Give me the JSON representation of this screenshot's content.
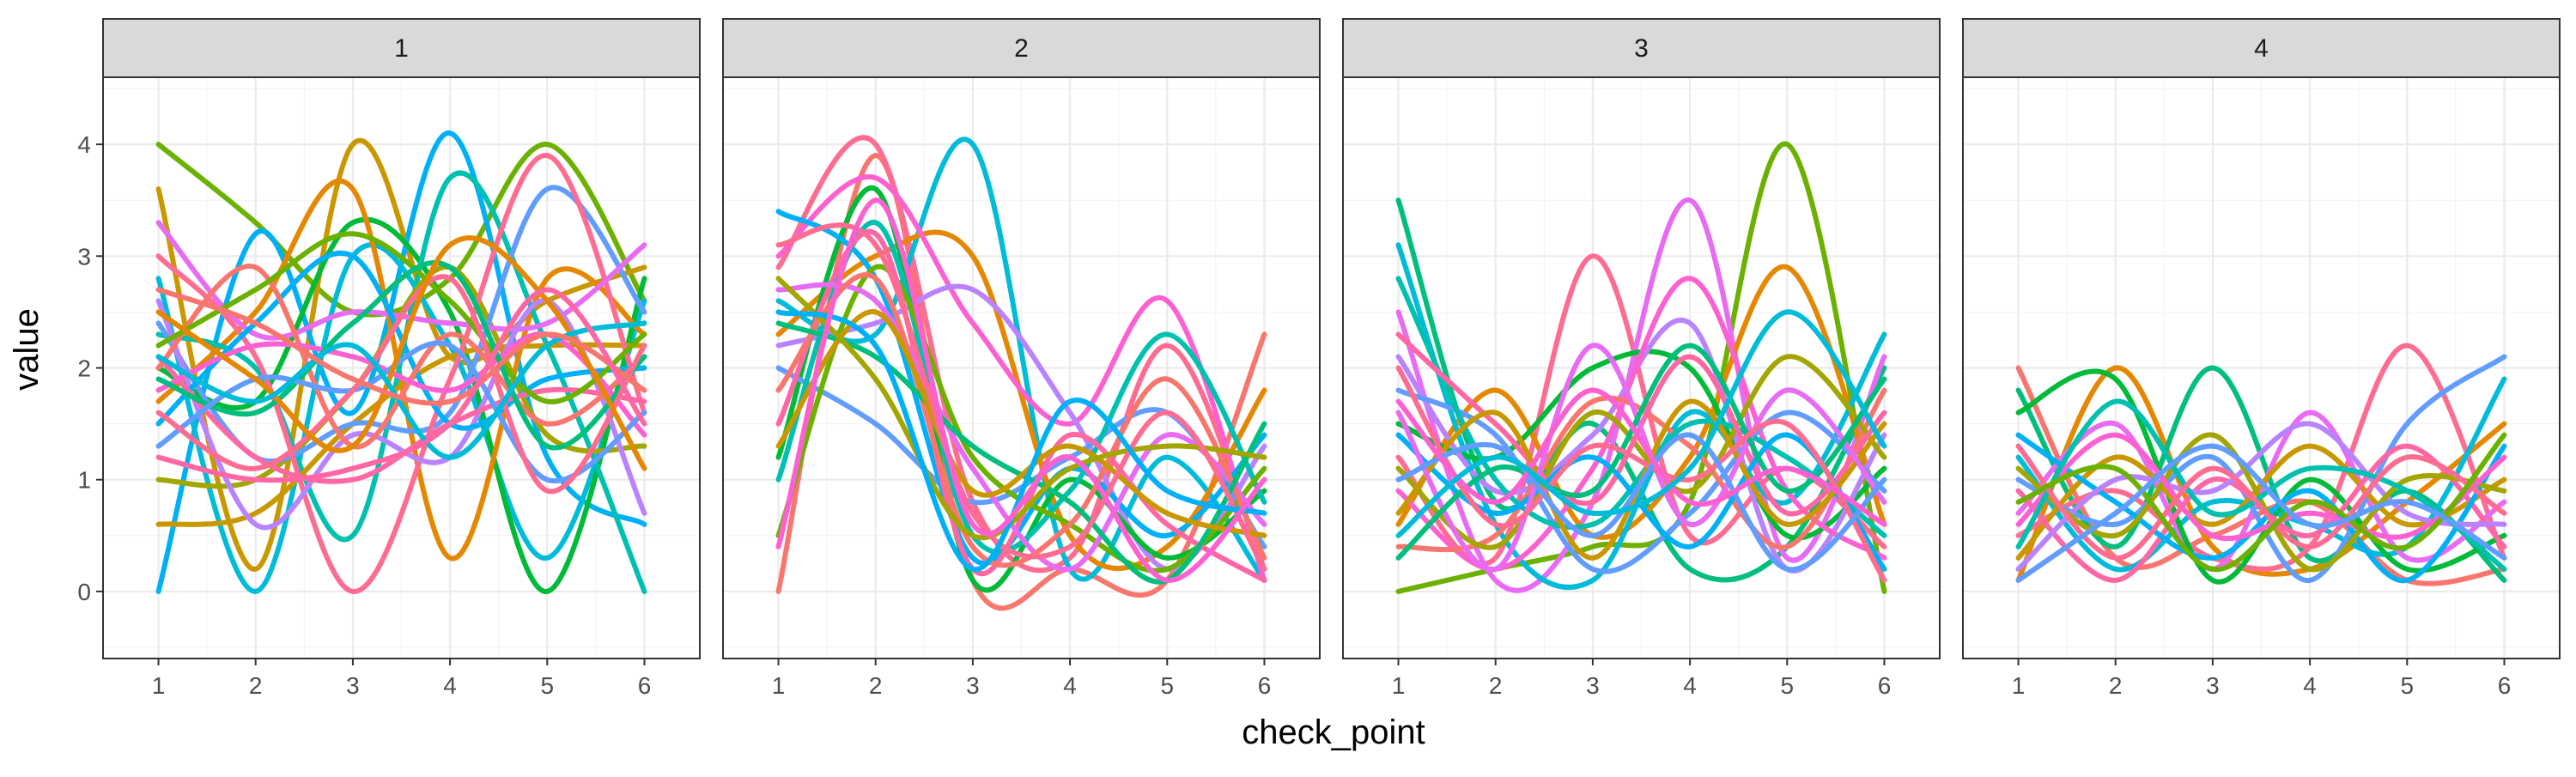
{
  "chart_data": {
    "type": "line",
    "xlabel": "check_point",
    "ylabel": "value",
    "x": [
      1,
      2,
      3,
      4,
      5,
      6
    ],
    "xlim": [
      0.43,
      6.57
    ],
    "ylim": [
      -0.6,
      4.6
    ],
    "x_ticks": [
      "1",
      "2",
      "3",
      "4",
      "5",
      "6"
    ],
    "y_ticks": [
      "0",
      "1",
      "2",
      "3",
      "4"
    ],
    "grid": true,
    "legend": "none",
    "smoothing": "spline",
    "palette": [
      "#F8766D",
      "#E58700",
      "#C99800",
      "#A3A500",
      "#6BB100",
      "#00BA38",
      "#00BF7D",
      "#00C0AF",
      "#00BCD8",
      "#00B0F6",
      "#619CFF",
      "#B983FF",
      "#E76BF3",
      "#FD61D1",
      "#FF67A4",
      "#FF6C91"
    ],
    "panels": [
      {
        "label": "1",
        "series": [
          {
            "color": "#6BB100",
            "values": [
              4,
              3.3,
              2.5,
              2.8,
              4,
              2.6
            ]
          },
          {
            "color": "#C99800",
            "values": [
              3.6,
              0.2,
              4,
              2.1,
              2.6,
              2.9
            ]
          },
          {
            "color": "#00B0F6",
            "values": [
              0,
              3.2,
              1.6,
              4.1,
              1.2,
              0.6
            ]
          },
          {
            "color": "#00BCD8",
            "values": [
              2.8,
              0,
              3,
              2.2,
              0.3,
              2.6
            ]
          },
          {
            "color": "#00BA38",
            "values": [
              2,
              1.7,
              3.3,
              2.5,
              0,
              2.8
            ]
          },
          {
            "color": "#E58700",
            "values": [
              1.7,
              2.5,
              3.6,
              0.3,
              2.8,
              2.3
            ]
          },
          {
            "color": "#00C0AF",
            "values": [
              2.3,
              2,
              0.5,
              3.7,
              2.2,
              0
            ]
          },
          {
            "color": "#A3A500",
            "values": [
              1,
              1,
              1.8,
              2.9,
              1.4,
              1.3
            ]
          },
          {
            "color": "#C99800",
            "values": [
              0.6,
              0.7,
              1.5,
              2.1,
              2.2,
              2.2
            ]
          },
          {
            "color": "#619CFF",
            "values": [
              2.4,
              1.2,
              1.5,
              1.6,
              3.6,
              2.5
            ]
          },
          {
            "color": "#FF6C91",
            "values": [
              3,
              2.1,
              0,
              1.9,
              3.9,
              1.6
            ]
          },
          {
            "color": "#E76BF3",
            "values": [
              3.3,
              2.3,
              2.5,
              2.4,
              2.4,
              3.1
            ]
          },
          {
            "color": "#B983FF",
            "values": [
              2.6,
              0.6,
              1.4,
              1.2,
              2.6,
              0.7
            ]
          },
          {
            "color": "#00B0F6",
            "values": [
              1.5,
              2.4,
              3,
              1.5,
              1.9,
              2
            ]
          },
          {
            "color": "#FF67A4",
            "values": [
              2.1,
              1.2,
              1,
              1.5,
              1.8,
              1.7
            ]
          },
          {
            "color": "#F8766D",
            "values": [
              2,
              2.9,
              1.3,
              2.3,
              1.5,
              2.1
            ]
          },
          {
            "color": "#FD61D1",
            "values": [
              1.8,
              2.2,
              2.1,
              1.8,
              2.3,
              1.4
            ]
          },
          {
            "color": "#6BB100",
            "values": [
              2.2,
              2.7,
              3.2,
              2.6,
              1.7,
              2.3
            ]
          },
          {
            "color": "#00BF7D",
            "values": [
              1.9,
              1.6,
              2.4,
              2.9,
              1.3,
              2.1
            ]
          },
          {
            "color": "#619CFF",
            "values": [
              1.3,
              1.9,
              1.8,
              2.2,
              1,
              1.6
            ]
          },
          {
            "color": "#FF6C91",
            "values": [
              1.6,
              1.1,
              1.8,
              2.8,
              0.9,
              2.2
            ]
          },
          {
            "color": "#E58700",
            "values": [
              2.5,
              1.9,
              1.3,
              3.1,
              2.6,
              1.1
            ]
          },
          {
            "color": "#00BCD8",
            "values": [
              2.1,
              1.7,
              2.2,
              1.2,
              2.2,
              2.4
            ]
          },
          {
            "color": "#F8766D",
            "values": [
              2.7,
              2.4,
              1.9,
              1.7,
              2.3,
              1.8
            ]
          },
          {
            "color": "#FF67A4",
            "values": [
              1.2,
              1,
              1.1,
              1.5,
              2.7,
              1.5
            ]
          }
        ]
      },
      {
        "label": "2",
        "series": [
          {
            "color": "#F8766D",
            "values": [
              0,
              3.9,
              0.1,
              0.2,
              0.1,
              2.3
            ]
          },
          {
            "color": "#FF6C91",
            "values": [
              2.9,
              4,
              0.8,
              0.3,
              2.2,
              0.2
            ]
          },
          {
            "color": "#00BCD8",
            "values": [
              2.6,
              2.3,
              4,
              0.2,
              1.2,
              0.1
            ]
          },
          {
            "color": "#E58700",
            "values": [
              2.3,
              3,
              3,
              0.5,
              0.4,
              1.8
            ]
          },
          {
            "color": "#FD61D1",
            "values": [
              3,
              3.7,
              2.4,
              1.5,
              2.6,
              0.1
            ]
          },
          {
            "color": "#B983FF",
            "values": [
              2.2,
              2.4,
              2.7,
              1.6,
              0.2,
              1.3
            ]
          },
          {
            "color": "#00BA38",
            "values": [
              1.2,
              3.6,
              0.1,
              1,
              0.3,
              0.9
            ]
          },
          {
            "color": "#619CFF",
            "values": [
              2,
              1.5,
              0.8,
              1.2,
              1.6,
              0.4
            ]
          },
          {
            "color": "#00B0F6",
            "values": [
              3.4,
              2.8,
              0.3,
              1.1,
              0.5,
              1.4
            ]
          },
          {
            "color": "#00C0AF",
            "values": [
              1,
              3.3,
              0.5,
              0.9,
              2.3,
              0.8
            ]
          },
          {
            "color": "#6BB100",
            "values": [
              0.5,
              2.9,
              1.2,
              0.6,
              0.2,
              1.1
            ]
          },
          {
            "color": "#FF67A4",
            "values": [
              1.5,
              3.2,
              0.2,
              1.4,
              0.6,
              0.1
            ]
          },
          {
            "color": "#E76BF3",
            "values": [
              2.7,
              2.6,
              1.1,
              0.2,
              1.4,
              0.6
            ]
          },
          {
            "color": "#F8766D",
            "values": [
              1.8,
              2.8,
              0.4,
              0.6,
              1.9,
              0.3
            ]
          },
          {
            "color": "#00BF7D",
            "values": [
              2.4,
              2.1,
              1.3,
              0.8,
              0.1,
              1.5
            ]
          },
          {
            "color": "#C99800",
            "values": [
              1.3,
              2.5,
              0.9,
              1.3,
              0.7,
              0.5
            ]
          },
          {
            "color": "#A3A500",
            "values": [
              2.8,
              1.9,
              0.5,
              1.1,
              1.3,
              1.2
            ]
          },
          {
            "color": "#FF6C91",
            "values": [
              3.1,
              3.1,
              0.7,
              0.4,
              1.6,
              0.2
            ]
          },
          {
            "color": "#00B0F6",
            "values": [
              2.5,
              2.2,
              0.2,
              1.7,
              0.9,
              0.7
            ]
          },
          {
            "color": "#FD61D1",
            "values": [
              0.4,
              3.5,
              0.6,
              1.2,
              0.1,
              1
            ]
          }
        ]
      },
      {
        "label": "3",
        "series": [
          {
            "color": "#6BB100",
            "values": [
              0,
              0.2,
              0.4,
              0.8,
              4,
              0
            ]
          },
          {
            "color": "#00BF7D",
            "values": [
              3.5,
              0.8,
              1.5,
              0.2,
              0.4,
              2
            ]
          },
          {
            "color": "#FF6C91",
            "values": [
              1.2,
              0.3,
              3,
              0.5,
              1.1,
              0.4
            ]
          },
          {
            "color": "#E76BF3",
            "values": [
              2.5,
              0.1,
              0.8,
              3.5,
              0.3,
              2.1
            ]
          },
          {
            "color": "#E58700",
            "values": [
              0.6,
              1.8,
              0.5,
              1.2,
              2.9,
              0.6
            ]
          },
          {
            "color": "#00BCD8",
            "values": [
              3.1,
              0.6,
              0.1,
              1.6,
              0.8,
              2.3
            ]
          },
          {
            "color": "#00BA38",
            "values": [
              1.5,
              1.2,
              2,
              2,
              0.5,
              1.1
            ]
          },
          {
            "color": "#B983FF",
            "values": [
              2.1,
              0.9,
              1.4,
              2.4,
              0.2,
              1.4
            ]
          },
          {
            "color": "#FD61D1",
            "values": [
              0.9,
              0.2,
              1.1,
              2.8,
              0.9,
              0.3
            ]
          },
          {
            "color": "#619CFF",
            "values": [
              1.8,
              1.4,
              0.2,
              0.7,
              1.6,
              0.9
            ]
          },
          {
            "color": "#F8766D",
            "values": [
              0.4,
              0.5,
              1.7,
              1.3,
              0.4,
              1.8
            ]
          },
          {
            "color": "#00C0AF",
            "values": [
              2.8,
              1,
              0.6,
              1.5,
              1.2,
              0.5
            ]
          },
          {
            "color": "#A3A500",
            "values": [
              1.1,
              0.4,
              1.6,
              0.9,
              2.1,
              1.2
            ]
          },
          {
            "color": "#FF67A4",
            "values": [
              2.3,
              1.5,
              0.8,
              2.1,
              0.7,
              1.6
            ]
          },
          {
            "color": "#00B0F6",
            "values": [
              1.4,
              0.7,
              1.2,
              0.4,
              1.4,
              0.2
            ]
          },
          {
            "color": "#C99800",
            "values": [
              0.7,
              1.6,
              0.3,
              1.7,
              0.6,
              1.5
            ]
          },
          {
            "color": "#E76BF3",
            "values": [
              1.6,
              0.2,
              2.2,
              0.6,
              1.8,
              0.8
            ]
          },
          {
            "color": "#00BF7D",
            "values": [
              0.3,
              1.1,
              0.9,
              2.2,
              0.9,
              1.9
            ]
          },
          {
            "color": "#FF6C91",
            "values": [
              2,
              0.6,
              1.3,
              1,
              1.5,
              0.1
            ]
          },
          {
            "color": "#619CFF",
            "values": [
              1,
              1.3,
              0.5,
              1.4,
              0.2,
              1
            ]
          },
          {
            "color": "#FD61D1",
            "values": [
              1.7,
              0.8,
              1.8,
              0.8,
              1.1,
              0.6
            ]
          },
          {
            "color": "#00BCD8",
            "values": [
              0.5,
              1.2,
              0.7,
              1.1,
              2.5,
              1.3
            ]
          }
        ]
      },
      {
        "label": "4",
        "series": [
          {
            "color": "#F8766D",
            "values": [
              2,
              0.3,
              0.5,
              0.8,
              0.1,
              0.2
            ]
          },
          {
            "color": "#E58700",
            "values": [
              0.1,
              2,
              0.4,
              0.2,
              0.8,
              1.5
            ]
          },
          {
            "color": "#00BF7D",
            "values": [
              1.8,
              0.4,
              2,
              0.3,
              0.9,
              0.1
            ]
          },
          {
            "color": "#FF6C91",
            "values": [
              0.5,
              0.9,
              0.3,
              0.4,
              2.2,
              0.3
            ]
          },
          {
            "color": "#00BCD8",
            "values": [
              1.2,
              0.2,
              0.8,
              0.6,
              0.4,
              1.9
            ]
          },
          {
            "color": "#E76BF3",
            "values": [
              0.7,
              1.5,
              0.2,
              1.6,
              0.3,
              0.8
            ]
          },
          {
            "color": "#619CFF",
            "values": [
              1,
              0.6,
              1.2,
              0.1,
              1.5,
              2.1
            ]
          },
          {
            "color": "#00BA38",
            "values": [
              1.6,
              1.9,
              0.1,
              1,
              0.2,
              0.5
            ]
          },
          {
            "color": "#C99800",
            "values": [
              0.3,
              1.2,
              0.6,
              1.3,
              0.6,
              1
            ]
          },
          {
            "color": "#FF67A4",
            "values": [
              0.9,
              0.1,
              1,
              0.5,
              1.3,
              0.4
            ]
          },
          {
            "color": "#00B0F6",
            "values": [
              1.4,
              0.8,
              0.3,
              0.9,
              0.1,
              1.3
            ]
          },
          {
            "color": "#B983FF",
            "values": [
              0.2,
              1,
              0.9,
              1.5,
              0.7,
              0.6
            ]
          },
          {
            "color": "#A3A500",
            "values": [
              1.1,
              0.5,
              1.4,
              0.2,
              1,
              0.9
            ]
          },
          {
            "color": "#FD61D1",
            "values": [
              0.6,
              1.4,
              0.5,
              0.7,
              0.5,
              1.2
            ]
          },
          {
            "color": "#00C0AF",
            "values": [
              0.4,
              1.7,
              0.7,
              1.1,
              0.9,
              0.2
            ]
          },
          {
            "color": "#FF6C91",
            "values": [
              1.3,
              0.3,
              1.1,
              0.4,
              1.2,
              0.7
            ]
          },
          {
            "color": "#6BB100",
            "values": [
              0.8,
              1.1,
              0.2,
              0.8,
              0.4,
              1.4
            ]
          },
          {
            "color": "#619CFF",
            "values": [
              0.1,
              0.7,
              1.3,
              0.6,
              0.8,
              0.3
            ]
          }
        ]
      }
    ]
  }
}
